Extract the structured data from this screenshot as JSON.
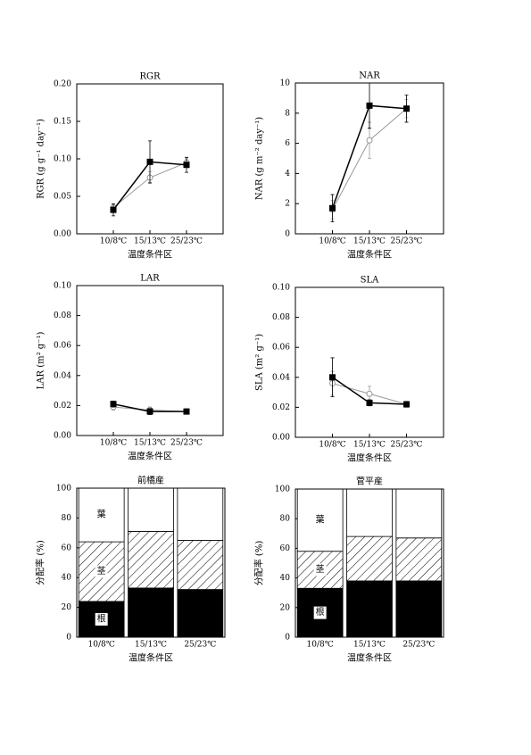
{
  "chart_data": [
    {
      "type": "line",
      "title": "RGR",
      "xlabel": "温度条件区",
      "ylabel": "RGR (g g⁻¹ day⁻¹)",
      "categories": [
        "10/8℃",
        "15/13℃",
        "25/23℃"
      ],
      "ylim": [
        0,
        0.2
      ],
      "yticks": [
        {
          "value": 0,
          "label": "0.00"
        },
        {
          "value": 0.05,
          "label": "0.05"
        },
        {
          "value": 0.1,
          "label": "0.10"
        },
        {
          "value": 0.15,
          "label": "0.15"
        },
        {
          "value": 0.2,
          "label": "0.20"
        }
      ],
      "series": [
        {
          "color": "#999999",
          "marker": "circle",
          "values": [
            0.035,
            0.075,
            0.095
          ],
          "errors": [
            0.005,
            0.008,
            0.005
          ]
        },
        {
          "color": "#000000",
          "marker": "square",
          "values": [
            0.032,
            0.096,
            0.092
          ],
          "errors": [
            0.008,
            0.028,
            0.01
          ]
        }
      ]
    },
    {
      "type": "line",
      "title": "NAR",
      "xlabel": "温度条件区",
      "ylabel": "NAR (g m⁻² day⁻¹)",
      "categories": [
        "10/8℃",
        "15/13℃",
        "25/23℃"
      ],
      "ylim": [
        0,
        10
      ],
      "yticks": [
        0,
        2,
        4,
        6,
        8,
        10
      ],
      "series": [
        {
          "color": "#999999",
          "marker": "circle",
          "values": [
            1.6,
            6.2,
            8.3
          ],
          "errors": [
            0.6,
            1.2,
            0.6
          ]
        },
        {
          "color": "#000000",
          "marker": "square",
          "values": [
            1.7,
            8.5,
            8.3
          ],
          "errors": [
            0.9,
            1.5,
            0.9
          ]
        }
      ]
    },
    {
      "type": "line",
      "title": "LAR",
      "xlabel": "温度条件区",
      "ylabel": "LAR (m² g⁻¹)",
      "categories": [
        "10/8℃",
        "15/13℃",
        "25/23℃"
      ],
      "ylim": [
        0,
        0.1
      ],
      "yticks": [
        {
          "value": 0,
          "label": "0.00"
        },
        {
          "value": 0.02,
          "label": "0.02"
        },
        {
          "value": 0.04,
          "label": "0.04"
        },
        {
          "value": 0.06,
          "label": "0.06"
        },
        {
          "value": 0.08,
          "label": "0.08"
        },
        {
          "value": 0.1,
          "label": "0.10"
        }
      ],
      "series": [
        {
          "color": "#999999",
          "marker": "circle",
          "values": [
            0.019,
            0.017,
            0.016
          ],
          "errors": [
            0.002,
            0.002,
            0.001
          ]
        },
        {
          "color": "#000000",
          "marker": "square",
          "values": [
            0.021,
            0.016,
            0.016
          ],
          "errors": [
            0.002,
            0.002,
            0.001
          ]
        }
      ]
    },
    {
      "type": "line",
      "title": "SLA",
      "xlabel": "温度条件区",
      "ylabel": "SLA (m² g⁻¹)",
      "categories": [
        "10/8℃",
        "15/13℃",
        "25/23℃"
      ],
      "ylim": [
        0,
        0.1
      ],
      "yticks": [
        {
          "value": 0,
          "label": "0.00"
        },
        {
          "value": 0.02,
          "label": "0.02"
        },
        {
          "value": 0.04,
          "label": "0.04"
        },
        {
          "value": 0.06,
          "label": "0.06"
        },
        {
          "value": 0.08,
          "label": "0.08"
        },
        {
          "value": 0.1,
          "label": "0.10"
        }
      ],
      "series": [
        {
          "color": "#999999",
          "marker": "circle",
          "values": [
            0.036,
            0.029,
            0.022
          ],
          "errors": [
            0.008,
            0.005,
            0.002
          ]
        },
        {
          "color": "#000000",
          "marker": "square",
          "values": [
            0.04,
            0.023,
            0.022
          ],
          "errors": [
            0.013,
            0.002,
            0.001
          ]
        }
      ]
    },
    {
      "type": "stacked_bar",
      "title": "前橋産",
      "xlabel": "温度条件区",
      "ylabel": "分配率 (%)",
      "categories": [
        "10/8℃",
        "15/13℃",
        "25/23℃"
      ],
      "ylim": [
        0,
        100
      ],
      "yticks": [
        0,
        20,
        40,
        60,
        80,
        100
      ],
      "series": [
        {
          "name": "根",
          "color": "#000000",
          "hatch": false,
          "values": [
            24,
            33,
            32
          ]
        },
        {
          "name": "茎",
          "color": "#ffffff",
          "hatch": true,
          "values": [
            40,
            38,
            33
          ]
        },
        {
          "name": "葉",
          "color": "#ffffff",
          "hatch": false,
          "values": [
            36,
            29,
            35
          ]
        }
      ]
    },
    {
      "type": "stacked_bar",
      "title": "菅平産",
      "xlabel": "温度条件区",
      "ylabel": "分配率 (%)",
      "categories": [
        "10/8℃",
        "15/13℃",
        "25/23℃"
      ],
      "ylim": [
        0,
        100
      ],
      "yticks": [
        0,
        20,
        40,
        60,
        80,
        100
      ],
      "series": [
        {
          "name": "根",
          "color": "#000000",
          "hatch": false,
          "values": [
            33,
            38,
            38
          ]
        },
        {
          "name": "茎",
          "color": "#ffffff",
          "hatch": true,
          "values": [
            25,
            30,
            29
          ]
        },
        {
          "name": "葉",
          "color": "#ffffff",
          "hatch": false,
          "values": [
            42,
            32,
            33
          ]
        }
      ]
    }
  ]
}
